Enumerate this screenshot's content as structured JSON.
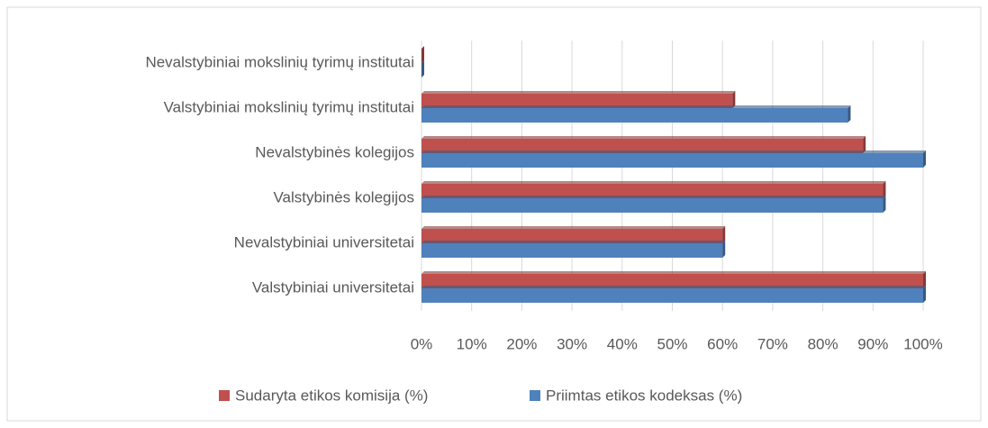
{
  "chart_data": {
    "type": "bar",
    "orientation": "horizontal",
    "categories": [
      "Nevalstybiniai mokslinių tyrimų institutai",
      "Valstybiniai mokslinių tyrimų institutai",
      "Nevalstybinės kolegijos",
      "Valstybinės kolegijos",
      "Nevalstybiniai universitetai",
      "Valstybiniai universitetai"
    ],
    "series": [
      {
        "name": "Sudaryta etikos komisija (%)",
        "color": "#c0504d",
        "values": [
          0,
          62,
          88,
          92,
          60,
          100
        ]
      },
      {
        "name": "Priimtas etikos kodeksas (%)",
        "color": "#4f81bd",
        "values": [
          0,
          85,
          100,
          92,
          60,
          100
        ]
      }
    ],
    "xlim": [
      0,
      100
    ],
    "xticks": [
      {
        "value": 0,
        "label": "0%"
      },
      {
        "value": 10,
        "label": "10%"
      },
      {
        "value": 20,
        "label": "20%"
      },
      {
        "value": 30,
        "label": "30%"
      },
      {
        "value": 40,
        "label": "40%"
      },
      {
        "value": 50,
        "label": "50%"
      },
      {
        "value": 60,
        "label": "60%"
      },
      {
        "value": 70,
        "label": "70%"
      },
      {
        "value": 80,
        "label": "80%"
      },
      {
        "value": 90,
        "label": "90%"
      },
      {
        "value": 100,
        "label": "100%"
      }
    ],
    "grid": true,
    "legend": "bottom"
  }
}
